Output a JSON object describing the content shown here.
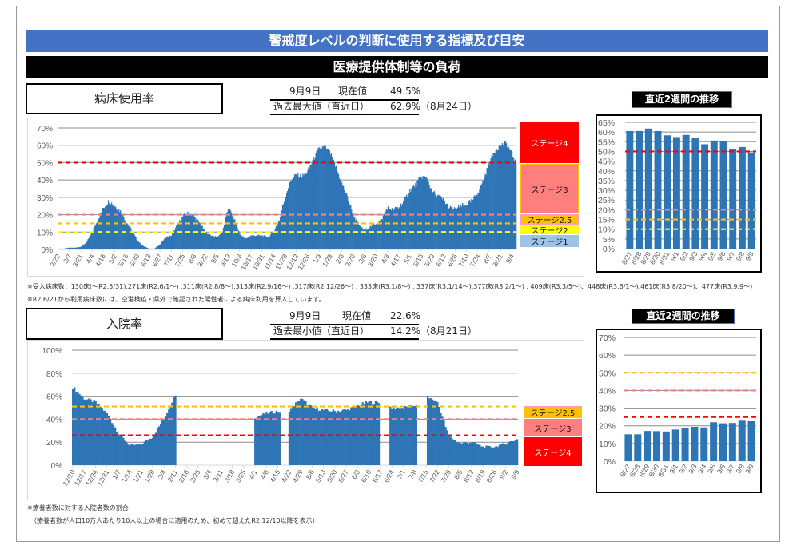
{
  "header": {
    "title": "警戒度レベルの判断に使用する指標及び目安",
    "subtitle": "医療提供体制等の負荷"
  },
  "bed": {
    "label": "病床使用率",
    "current": {
      "date": "9月9日",
      "label": "現在値",
      "value": "49.5%"
    },
    "record": {
      "label": "過去最大値（直近日）",
      "value": "62.9%",
      "date": "（8月24日）"
    },
    "stages": [
      "ステージ4",
      "ステージ3",
      "ステージ2.5",
      "ステージ2",
      "ステージ1"
    ],
    "recent_title": "直近2週間の推移",
    "notes": [
      "※受入病床数：130床(～R2.5/31),271床(R2.6/1～) ,311床(R2.8/8～),313床(R2.9/16～) ,317床(R2.12/26～) , 333床(R3.1/8～) , 337床(R3.1/14～),377床(R3.2/1～) , 409床(R3.3/5～)、448床(R3.6/1～),461床(R3.8/20～)、477床(R3.9.9～)",
      "※R2.6/21から利用病床数には、空港検疫・県外で確認された陽性者による病床利用を算入しています。"
    ]
  },
  "hosp": {
    "label": "入院率",
    "current": {
      "date": "9月9日",
      "label": "現在値",
      "value": "22.6%"
    },
    "record": {
      "label": "過去最小値（直近日）",
      "value": "14.2%",
      "date": "（8月21日）"
    },
    "stages": [
      "ステージ2.5",
      "ステージ3",
      "ステージ4"
    ],
    "recent_title": "直近2週間の推移",
    "notes": [
      "※療養者数に対する入院者数の割合",
      "（療養者数が人口10万人あたり10人以上の場合に適用のため、初めて超えたR2.12/10以降を表示）"
    ]
  },
  "colors": {
    "bar": "#2e75b6",
    "stage4": "#ff0000",
    "stage3": "#ff7f7f",
    "stage25": "#ffc000",
    "stage2": "#ffff00",
    "stage1": "#9dc3e6"
  },
  "chart_data": [
    {
      "type": "bar",
      "title": "病床使用率",
      "ylim": [
        0,
        70
      ],
      "yticks": [
        0,
        10,
        20,
        30,
        40,
        50,
        60,
        70
      ],
      "yfmt": "%",
      "step_days": 7,
      "total_days": 565,
      "values": [
        0.5,
        0.5,
        1,
        1,
        1.5,
        4,
        10,
        17,
        24,
        28,
        25,
        22,
        16,
        11,
        5,
        2,
        0.5,
        0.5,
        3,
        7,
        8,
        14,
        19,
        21,
        19,
        15,
        10,
        8,
        7,
        10,
        24,
        18,
        9,
        6,
        8,
        8,
        8,
        7,
        10,
        17,
        30,
        40,
        43,
        42,
        45,
        52,
        58,
        59,
        55,
        47,
        38,
        30,
        20,
        14,
        11,
        13,
        15,
        17,
        24,
        23,
        24,
        28,
        34,
        37,
        42,
        41,
        33,
        31,
        28,
        24,
        23,
        25,
        26,
        28,
        33,
        40,
        50,
        57,
        60,
        61,
        55
      ],
      "final_value": 49.5,
      "gaps": [],
      "label_step_days": 14,
      "xlabels": [
        "2/22",
        "3/7",
        "3/21",
        "4/4",
        "4/18",
        "5/2",
        "5/16",
        "5/30",
        "6/13",
        "6/27",
        "7/11",
        "7/25",
        "8/8",
        "8/22",
        "9/5",
        "9/19",
        "10/3",
        "10/17",
        "10/31",
        "11/14",
        "11/28",
        "12/12",
        "12/26",
        "1/9",
        "1/23",
        "2/6",
        "2/20",
        "3/6",
        "3/20",
        "4/3",
        "4/17",
        "5/1",
        "5/15",
        "5/29",
        "6/12",
        "6/26",
        "7/10",
        "7/24",
        "8/7",
        "8/21",
        "9/4"
      ],
      "thresholds": [
        {
          "name": "stage4",
          "value": 50,
          "color": "#ff0000"
        },
        {
          "name": "stage3",
          "value": 20,
          "color": "#ff7f7f"
        },
        {
          "name": "stage25",
          "value": 15,
          "color": "#ffc000"
        },
        {
          "name": "stage2",
          "value": 10,
          "color": "#ffff00"
        }
      ]
    },
    {
      "type": "bar",
      "title": "病床使用率 直近2週間の推移",
      "ylim": [
        0,
        65
      ],
      "yticks": [
        0,
        5,
        10,
        15,
        20,
        25,
        30,
        35,
        40,
        45,
        50,
        55,
        60,
        65
      ],
      "categories": [
        "8/27",
        "8/28",
        "8/29",
        "8/30",
        "8/31",
        "9/1",
        "9/2",
        "9/3",
        "9/4",
        "9/5",
        "9/6",
        "9/7",
        "9/8",
        "9/9"
      ],
      "values": [
        60.5,
        60.5,
        61.8,
        60.5,
        58.3,
        57.4,
        58.5,
        57.0,
        53.7,
        55.6,
        55.3,
        51.4,
        52.3,
        49.5
      ],
      "thresholds": [
        {
          "name": "stage4",
          "value": 50,
          "color": "#ff0000"
        },
        {
          "name": "stage3",
          "value": 20,
          "color": "#ff7f7f"
        },
        {
          "name": "stage25",
          "value": 15,
          "color": "#ffc000"
        },
        {
          "name": "stage2",
          "value": 10,
          "color": "#ffff00"
        }
      ]
    },
    {
      "type": "bar",
      "title": "入院率",
      "ylim": [
        0,
        100
      ],
      "yticks": [
        0,
        20,
        40,
        60,
        80,
        100
      ],
      "step_days": 7,
      "total_days": 273,
      "values": [
        68,
        58,
        55,
        45,
        28,
        17,
        18,
        25,
        40,
        62,
        null,
        null,
        null,
        null,
        null,
        null,
        42,
        45,
        47,
        48,
        58,
        50,
        48,
        47,
        48,
        52,
        55,
        54,
        50,
        50,
        52,
        60,
        55,
        25,
        19,
        20,
        16,
        16,
        19,
        22.6
      ],
      "final_value": 22.6,
      "gaps": [
        [
          64,
          111
        ],
        [
          128,
          132
        ],
        [
          189,
          194
        ],
        [
          212,
          217
        ]
      ],
      "label_step_days": 7,
      "xlabels": [
        "12/10",
        "12/17",
        "12/24",
        "12/31",
        "1/7",
        "1/14",
        "1/21",
        "1/28",
        "2/4",
        "2/11",
        "2/18",
        "2/25",
        "3/4",
        "3/11",
        "3/18",
        "3/25",
        "4/1",
        "4/8",
        "4/15",
        "4/22",
        "4/29",
        "5/6",
        "5/13",
        "5/20",
        "5/27",
        "6/3",
        "6/10",
        "6/17",
        "6/24",
        "7/1",
        "7/8",
        "7/15",
        "7/22",
        "7/29",
        "8/5",
        "8/12",
        "8/19",
        "8/26",
        "9/2",
        "9/9"
      ],
      "thresholds": [
        {
          "name": "stage25",
          "value": 51,
          "color": "#ffc000"
        },
        {
          "name": "stage3",
          "value": 40,
          "color": "#ff7f7f"
        },
        {
          "name": "stage4",
          "value": 26,
          "color": "#ff0000"
        }
      ]
    },
    {
      "type": "bar",
      "title": "入院率 直近2週間の推移",
      "ylim": [
        0,
        70
      ],
      "yticks": [
        0,
        10,
        20,
        30,
        40,
        50,
        60,
        70
      ],
      "categories": [
        "8/27",
        "8/28",
        "8/29",
        "8/30",
        "8/31",
        "9/1",
        "9/2",
        "9/3",
        "9/4",
        "9/5",
        "9/6",
        "9/7",
        "9/8",
        "9/9"
      ],
      "values": [
        15.2,
        15.2,
        17.1,
        17.0,
        16.8,
        17.9,
        18.8,
        19.4,
        19.1,
        22.0,
        21.4,
        21.6,
        22.9,
        22.6
      ],
      "thresholds": [
        {
          "name": "stage25",
          "value": 50,
          "color": "#ffc000"
        },
        {
          "name": "stage3",
          "value": 40,
          "color": "#ff7f7f"
        },
        {
          "name": "stage4",
          "value": 25,
          "color": "#ff0000"
        }
      ]
    }
  ]
}
